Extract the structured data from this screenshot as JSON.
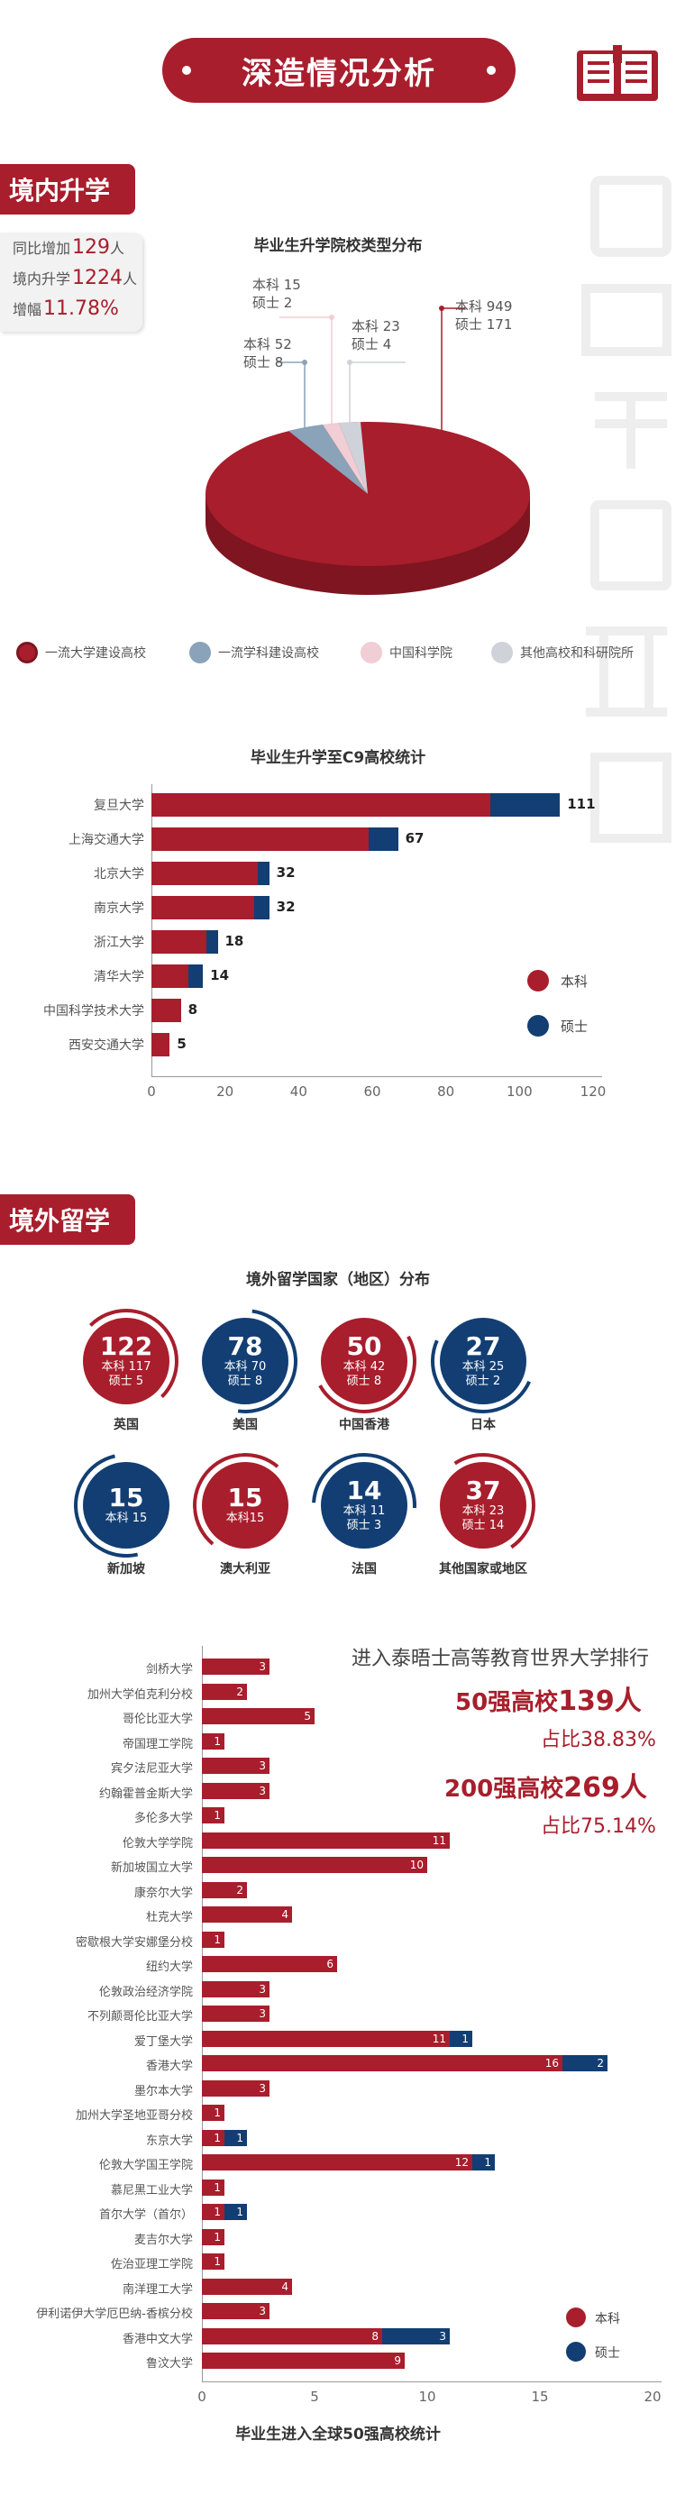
{
  "header": {
    "title": "深造情况分析"
  },
  "domestic": {
    "section_label": "境内升学",
    "stats": [
      {
        "label": "同比增加",
        "value": "129",
        "unit": "人"
      },
      {
        "label": "境内升学",
        "value": "1224",
        "unit": "人"
      },
      {
        "label": "增幅",
        "value": "11.78%",
        "unit": ""
      }
    ]
  },
  "pie": {
    "title": "毕业生升学院校类型分布",
    "slices": [
      {
        "name": "一流大学建设高校",
        "undergrad": 949,
        "master": 171,
        "color": "#a81e2c",
        "l1": "本科 949",
        "l2": "硕士 171"
      },
      {
        "name": "一流学科建设高校",
        "undergrad": 52,
        "master": 8,
        "color": "#8aa3b8",
        "l1": "本科 52",
        "l2": "硕士 8"
      },
      {
        "name": "中国科学院",
        "undergrad": 15,
        "master": 2,
        "color": "#f1cdd5",
        "l1": "本科 15",
        "l2": "硕士 2"
      },
      {
        "name": "其他高校和科研院所",
        "undergrad": 23,
        "master": 4,
        "color": "#cfd2d8",
        "l1": "本科 23",
        "l2": "硕士 4"
      }
    ]
  },
  "c9": {
    "title": "毕业生升学至C9高校统计",
    "legend": [
      "本科",
      "硕士"
    ],
    "colors": {
      "undergrad": "#a81e2c",
      "master": "#123e73"
    },
    "axis": [
      "0",
      "20",
      "40",
      "60",
      "80",
      "100",
      "120"
    ],
    "rows": [
      {
        "name": "复旦大学",
        "u": 92,
        "m": 19,
        "total": "111"
      },
      {
        "name": "上海交通大学",
        "u": 59,
        "m": 8,
        "total": "67"
      },
      {
        "name": "北京大学",
        "u": 29,
        "m": 3,
        "total": "32"
      },
      {
        "name": "南京大学",
        "u": 28,
        "m": 4,
        "total": "32"
      },
      {
        "name": "浙江大学",
        "u": 15,
        "m": 3,
        "total": "18"
      },
      {
        "name": "清华大学",
        "u": 10,
        "m": 4,
        "total": "14"
      },
      {
        "name": "中国科学技术大学",
        "u": 8,
        "m": 0,
        "total": "8"
      },
      {
        "name": "西安交通大学",
        "u": 5,
        "m": 0,
        "total": "5"
      }
    ]
  },
  "overseas": {
    "section_label": "境外留学",
    "title": "境外留学国家（地区）分布",
    "countries": [
      {
        "total": "122",
        "l1": "本科 117",
        "l2": "硕士 5",
        "name": "英国",
        "color": "red"
      },
      {
        "total": "78",
        "l1": "本科 70",
        "l2": "硕士 8",
        "name": "美国",
        "color": "blue"
      },
      {
        "total": "50",
        "l1": "本科 42",
        "l2": "硕士 8",
        "name": "中国香港",
        "color": "red"
      },
      {
        "total": "27",
        "l1": "本科 25",
        "l2": "硕士 2",
        "name": "日本",
        "color": "blue"
      },
      {
        "total": "15",
        "l1": "本科 15",
        "l2": "",
        "name": "新加坡",
        "color": "blue"
      },
      {
        "total": "15",
        "l1": "本科15",
        "l2": "",
        "name": "澳大利亚",
        "color": "red"
      },
      {
        "total": "14",
        "l1": "本科 11",
        "l2": "硕士 3",
        "name": "法国",
        "color": "blue"
      },
      {
        "total": "37",
        "l1": "本科 23",
        "l2": "硕士 14",
        "name": "其他国家或地区",
        "color": "red"
      }
    ]
  },
  "ranking": {
    "line1": "进入泰晤士高等教育世界大学排行",
    "top50_label": "50强高校",
    "top50_value": "139人",
    "top50_pct": "占比38.83%",
    "top200_label": "200强高校",
    "top200_value": "269人",
    "top200_pct": "占比75.14%"
  },
  "top50": {
    "caption": "毕业生进入全球50强高校统计",
    "legend": [
      "本科",
      "硕士"
    ],
    "axis": [
      "0",
      "5",
      "10",
      "15",
      "20"
    ],
    "rows": [
      {
        "name": "剑桥大学",
        "u": 3,
        "m": 0
      },
      {
        "name": "加州大学伯克利分校",
        "u": 2,
        "m": 0
      },
      {
        "name": "哥伦比亚大学",
        "u": 5,
        "m": 0
      },
      {
        "name": "帝国理工学院",
        "u": 1,
        "m": 0
      },
      {
        "name": "宾夕法尼亚大学",
        "u": 3,
        "m": 0
      },
      {
        "name": "约翰霍普金斯大学",
        "u": 3,
        "m": 0
      },
      {
        "name": "多伦多大学",
        "u": 1,
        "m": 0
      },
      {
        "name": "伦敦大学学院",
        "u": 11,
        "m": 0
      },
      {
        "name": "新加坡国立大学",
        "u": 10,
        "m": 0
      },
      {
        "name": "康奈尔大学",
        "u": 2,
        "m": 0
      },
      {
        "name": "杜克大学",
        "u": 4,
        "m": 0
      },
      {
        "name": "密歇根大学安娜堡分校",
        "u": 1,
        "m": 0
      },
      {
        "name": "纽约大学",
        "u": 6,
        "m": 0
      },
      {
        "name": "伦敦政治经济学院",
        "u": 3,
        "m": 0
      },
      {
        "name": "不列颠哥伦比亚大学",
        "u": 3,
        "m": 0
      },
      {
        "name": "爱丁堡大学",
        "u": 11,
        "m": 1
      },
      {
        "name": "香港大学",
        "u": 16,
        "m": 2
      },
      {
        "name": "墨尔本大学",
        "u": 3,
        "m": 0
      },
      {
        "name": "加州大学圣地亚哥分校",
        "u": 1,
        "m": 0
      },
      {
        "name": "东京大学",
        "u": 1,
        "m": 1
      },
      {
        "name": "伦敦大学国王学院",
        "u": 12,
        "m": 1
      },
      {
        "name": "慕尼黑工业大学",
        "u": 1,
        "m": 0
      },
      {
        "name": "首尔大学（首尔）",
        "u": 1,
        "m": 1
      },
      {
        "name": "麦吉尔大学",
        "u": 1,
        "m": 0
      },
      {
        "name": "佐治亚理工学院",
        "u": 1,
        "m": 0
      },
      {
        "name": "南洋理工大学",
        "u": 4,
        "m": 0
      },
      {
        "name": "伊利诺伊大学厄巴纳-香槟分校",
        "u": 3,
        "m": 0
      },
      {
        "name": "香港中文大学",
        "u": 8,
        "m": 3
      },
      {
        "name": "鲁汶大学",
        "u": 9,
        "m": 0
      }
    ]
  }
}
